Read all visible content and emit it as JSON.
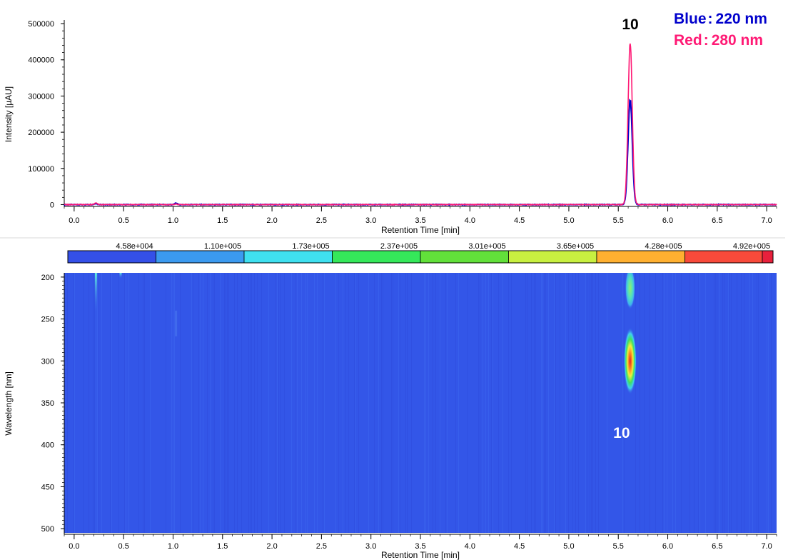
{
  "legend": {
    "blue_label": "Blue",
    "blue_value": "220 nm",
    "red_label": "Red",
    "red_value": "280 nm",
    "separator": ":"
  },
  "chart_data": [
    {
      "type": "line",
      "xlabel": "Retention Time [min]",
      "ylabel": "Intensity [µAU]",
      "xlim": [
        -0.1,
        7.1
      ],
      "ylim": [
        -5000,
        510000
      ],
      "x_ticks": [
        "0.0",
        "0.5",
        "1.0",
        "1.5",
        "2.0",
        "2.5",
        "3.0",
        "3.5",
        "4.0",
        "4.5",
        "5.0",
        "5.5",
        "6.0",
        "6.5",
        "7.0"
      ],
      "y_ticks": [
        "0",
        "100000",
        "200000",
        "300000",
        "400000",
        "500000"
      ],
      "peak_label": "10",
      "peak_x": 5.62,
      "series": [
        {
          "name": "220 nm",
          "color": "#0000cc",
          "baseline": 0,
          "peak_x": 5.62,
          "peak_y": 290000,
          "x": [
            0.22,
            1.03
          ],
          "y": [
            2500,
            3500
          ]
        },
        {
          "name": "280 nm",
          "color": "#ff1a75",
          "baseline": 0,
          "peak_x": 5.62,
          "peak_y": 445000,
          "x": [
            0.22,
            1.03
          ],
          "y": [
            4000,
            1500
          ]
        }
      ]
    },
    {
      "type": "heatmap",
      "xlabel": "Retention Time [min]",
      "ylabel": "Wavelength [nm]",
      "xlim": [
        -0.1,
        7.1
      ],
      "ylim": [
        195,
        505
      ],
      "x_ticks": [
        "0.0",
        "0.5",
        "1.0",
        "1.5",
        "2.0",
        "2.5",
        "3.0",
        "3.5",
        "4.0",
        "4.5",
        "5.0",
        "5.5",
        "6.0",
        "6.5",
        "7.0"
      ],
      "y_ticks": [
        "200",
        "250",
        "300",
        "350",
        "400",
        "450",
        "500"
      ],
      "colorbar_labels": [
        "4.58e+004",
        "1.10e+005",
        "1.73e+005",
        "2.37e+005",
        "3.01e+005",
        "3.65e+005",
        "4.28e+005",
        "4.92e+005"
      ],
      "colorbar_colors": [
        "#3450e8",
        "#3b9af0",
        "#3fe0f0",
        "#35e85a",
        "#62e03a",
        "#c8f040",
        "#ffb030",
        "#f84a3a"
      ],
      "background_color": "#3356e8",
      "peak_label": "10",
      "peak_label_wavelength": 385,
      "peak_x": 5.62
    }
  ]
}
